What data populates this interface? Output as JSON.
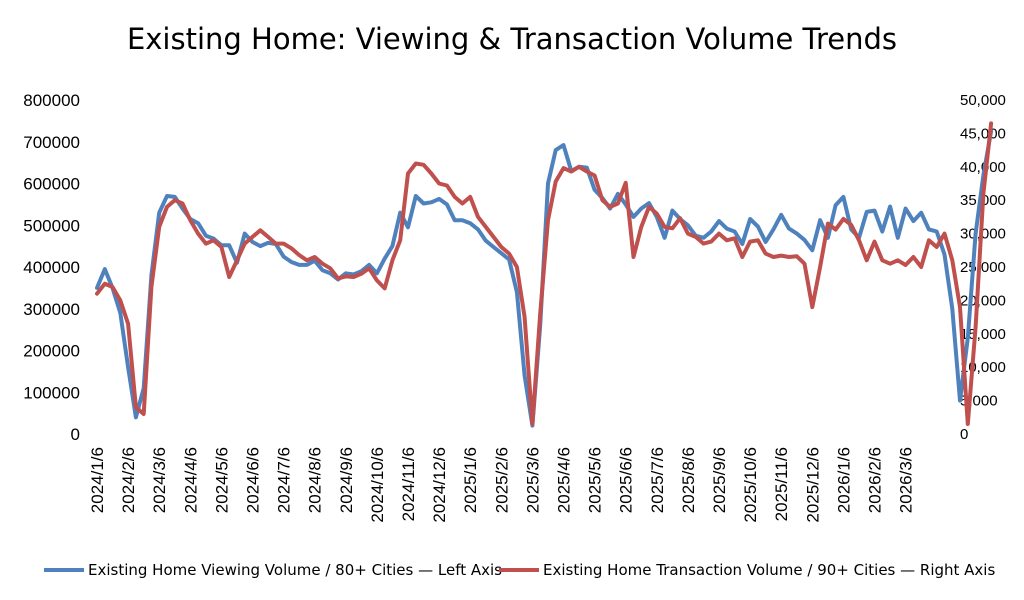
{
  "chart_data": {
    "type": "line",
    "title": "Existing Home: Viewing & Transaction Volume Trends",
    "x_tick_labels": [
      "2024/1/6",
      "2024/2/6",
      "2024/3/6",
      "2024/4/6",
      "2024/5/6",
      "2024/6/6",
      "2024/7/6",
      "2024/8/6",
      "2024/9/6",
      "2024/10/6",
      "2024/11/6",
      "2024/12/6",
      "2025/1/6",
      "2025/2/6",
      "2025/3/6",
      "2025/4/6",
      "2025/5/6",
      "2025/6/6",
      "2025/7/6",
      "2025/8/6",
      "2025/9/6",
      "2025/10/6",
      "2025/11/6",
      "2025/12/6",
      "2026/1/6",
      "2026/2/6",
      "2026/3/6"
    ],
    "y_left": {
      "min": 0,
      "max": 800000,
      "ticks": [
        "0",
        "100000",
        "200000",
        "300000",
        "400000",
        "500000",
        "600000",
        "700000",
        "800000"
      ]
    },
    "y_right": {
      "min": 0,
      "max": 50000,
      "ticks": [
        "0",
        "5,000",
        "10,000",
        "15,000",
        "20,000",
        "25,000",
        "30,000",
        "35,000",
        "40,000",
        "45,000",
        "50,000"
      ]
    },
    "series": [
      {
        "name": "Existing Home Viewing Volume / 80+ Cities — Left Axis",
        "axis": "left",
        "color": "#4f81bd",
        "points": [
          [
            0,
            350000
          ],
          [
            0.25,
            395000
          ],
          [
            0.5,
            350000
          ],
          [
            0.75,
            290000
          ],
          [
            1,
            160000
          ],
          [
            1.25,
            40000
          ],
          [
            1.5,
            110000
          ],
          [
            1.75,
            380000
          ],
          [
            2,
            530000
          ],
          [
            2.25,
            570000
          ],
          [
            2.5,
            568000
          ],
          [
            2.75,
            540000
          ],
          [
            3,
            515000
          ],
          [
            3.25,
            505000
          ],
          [
            3.5,
            475000
          ],
          [
            3.75,
            468000
          ],
          [
            4,
            452000
          ],
          [
            4.25,
            452000
          ],
          [
            4.5,
            410000
          ],
          [
            4.75,
            480000
          ],
          [
            5,
            460000
          ],
          [
            5.25,
            450000
          ],
          [
            5.5,
            458000
          ],
          [
            5.75,
            455000
          ],
          [
            6,
            425000
          ],
          [
            6.25,
            412000
          ],
          [
            6.5,
            405000
          ],
          [
            6.75,
            405000
          ],
          [
            7,
            415000
          ],
          [
            7.25,
            392000
          ],
          [
            7.5,
            385000
          ],
          [
            7.75,
            370000
          ],
          [
            8,
            385000
          ],
          [
            8.25,
            382000
          ],
          [
            8.5,
            390000
          ],
          [
            8.75,
            405000
          ],
          [
            9,
            385000
          ],
          [
            9.25,
            420000
          ],
          [
            9.5,
            450000
          ],
          [
            9.75,
            530000
          ],
          [
            10,
            495000
          ],
          [
            10.25,
            570000
          ],
          [
            10.5,
            552000
          ],
          [
            10.75,
            555000
          ],
          [
            11,
            563000
          ],
          [
            11.25,
            550000
          ],
          [
            11.5,
            512000
          ],
          [
            11.75,
            512000
          ],
          [
            12,
            505000
          ],
          [
            12.25,
            490000
          ],
          [
            12.5,
            463000
          ],
          [
            12.75,
            448000
          ],
          [
            13,
            433000
          ],
          [
            13.25,
            418000
          ],
          [
            13.5,
            340000
          ],
          [
            13.75,
            140000
          ],
          [
            14,
            20000
          ],
          [
            14.25,
            260000
          ],
          [
            14.5,
            600000
          ],
          [
            14.75,
            680000
          ],
          [
            15,
            692000
          ],
          [
            15.25,
            630000
          ],
          [
            15.5,
            640000
          ],
          [
            15.75,
            638000
          ],
          [
            16,
            585000
          ],
          [
            16.25,
            565000
          ],
          [
            16.5,
            540000
          ],
          [
            16.75,
            575000
          ],
          [
            17,
            550000
          ],
          [
            17.25,
            520000
          ],
          [
            17.5,
            540000
          ],
          [
            17.75,
            553000
          ],
          [
            18,
            520000
          ],
          [
            18.25,
            470000
          ],
          [
            18.5,
            535000
          ],
          [
            18.75,
            515000
          ],
          [
            19,
            500000
          ],
          [
            19.25,
            475000
          ],
          [
            19.5,
            470000
          ],
          [
            19.75,
            485000
          ],
          [
            20,
            510000
          ],
          [
            20.25,
            492000
          ],
          [
            20.5,
            485000
          ],
          [
            20.75,
            455000
          ],
          [
            21,
            515000
          ],
          [
            21.25,
            497000
          ],
          [
            21.5,
            460000
          ],
          [
            21.75,
            490000
          ],
          [
            22,
            525000
          ],
          [
            22.25,
            492000
          ],
          [
            22.5,
            480000
          ],
          [
            22.75,
            465000
          ],
          [
            23,
            440000
          ],
          [
            23.25,
            512000
          ],
          [
            23.5,
            470000
          ],
          [
            23.75,
            548000
          ],
          [
            24,
            568000
          ],
          [
            24.25,
            490000
          ],
          [
            24.5,
            470000
          ],
          [
            24.75,
            532000
          ],
          [
            25,
            535000
          ],
          [
            25.25,
            485000
          ],
          [
            25.5,
            545000
          ],
          [
            25.75,
            470000
          ],
          [
            26,
            540000
          ],
          [
            26.25,
            510000
          ],
          [
            26.5,
            530000
          ],
          [
            26.75,
            490000
          ],
          [
            27,
            485000
          ],
          [
            27.25,
            430000
          ],
          [
            27.5,
            300000
          ],
          [
            27.75,
            80000
          ],
          [
            28,
            230000
          ],
          [
            28.25,
            480000
          ],
          [
            28.5,
            620000
          ],
          [
            28.75,
            725000
          ]
        ]
      },
      {
        "name": "Existing Home Transaction Volume / 90+ Cities — Right Axis",
        "axis": "right",
        "color": "#c0504d",
        "points": [
          [
            0,
            21000
          ],
          [
            0.25,
            22500
          ],
          [
            0.5,
            22000
          ],
          [
            0.75,
            20000
          ],
          [
            1,
            16500
          ],
          [
            1.25,
            4000
          ],
          [
            1.5,
            3000
          ],
          [
            1.75,
            22000
          ],
          [
            2,
            31000
          ],
          [
            2.25,
            34000
          ],
          [
            2.5,
            35000
          ],
          [
            2.75,
            34500
          ],
          [
            3,
            32000
          ],
          [
            3.25,
            30000
          ],
          [
            3.5,
            28500
          ],
          [
            3.75,
            29000
          ],
          [
            4,
            28000
          ],
          [
            4.25,
            23500
          ],
          [
            4.5,
            26000
          ],
          [
            4.75,
            28500
          ],
          [
            5,
            29500
          ],
          [
            5.25,
            30500
          ],
          [
            5.5,
            29500
          ],
          [
            5.75,
            28500
          ],
          [
            6,
            28500
          ],
          [
            6.25,
            27800
          ],
          [
            6.5,
            26800
          ],
          [
            6.75,
            26000
          ],
          [
            7,
            26500
          ],
          [
            7.25,
            25500
          ],
          [
            7.5,
            24800
          ],
          [
            7.75,
            23300
          ],
          [
            8,
            23600
          ],
          [
            8.25,
            23500
          ],
          [
            8.5,
            24000
          ],
          [
            8.75,
            24800
          ],
          [
            9,
            23000
          ],
          [
            9.25,
            21800
          ],
          [
            9.5,
            26000
          ],
          [
            9.75,
            29000
          ],
          [
            10,
            39000
          ],
          [
            10.25,
            40500
          ],
          [
            10.5,
            40300
          ],
          [
            10.75,
            39000
          ],
          [
            11,
            37500
          ],
          [
            11.25,
            37200
          ],
          [
            11.5,
            35500
          ],
          [
            11.75,
            34500
          ],
          [
            12,
            35500
          ],
          [
            12.25,
            32500
          ],
          [
            12.75,
            29500
          ],
          [
            13,
            28000
          ],
          [
            13.25,
            27000
          ],
          [
            13.5,
            25000
          ],
          [
            13.75,
            17500
          ],
          [
            14,
            1500
          ],
          [
            14.25,
            18000
          ],
          [
            14.5,
            32000
          ],
          [
            14.75,
            37800
          ],
          [
            15,
            39800
          ],
          [
            15.25,
            39300
          ],
          [
            15.5,
            40000
          ],
          [
            15.75,
            39300
          ],
          [
            16,
            38700
          ],
          [
            16.25,
            35000
          ],
          [
            16.5,
            34000
          ],
          [
            16.75,
            34500
          ],
          [
            17,
            37600
          ],
          [
            17.25,
            26500
          ],
          [
            17.5,
            31000
          ],
          [
            17.75,
            34000
          ],
          [
            18,
            33000
          ],
          [
            18.25,
            31000
          ],
          [
            18.5,
            30800
          ],
          [
            18.75,
            32300
          ],
          [
            19,
            30000
          ],
          [
            19.25,
            29500
          ],
          [
            19.5,
            28500
          ],
          [
            19.75,
            28800
          ],
          [
            20,
            30000
          ],
          [
            20.25,
            29000
          ],
          [
            20.5,
            29300
          ],
          [
            20.75,
            26500
          ],
          [
            21,
            28800
          ],
          [
            21.25,
            29000
          ],
          [
            21.5,
            27000
          ],
          [
            21.75,
            26500
          ],
          [
            22,
            26700
          ],
          [
            22.25,
            26500
          ],
          [
            22.5,
            26600
          ],
          [
            22.75,
            25500
          ],
          [
            23,
            19000
          ],
          [
            23.25,
            25000
          ],
          [
            23.5,
            31500
          ],
          [
            23.75,
            30600
          ],
          [
            24,
            32200
          ],
          [
            24.25,
            31300
          ],
          [
            24.5,
            29000
          ],
          [
            24.75,
            26000
          ],
          [
            25,
            28800
          ],
          [
            25.25,
            26000
          ],
          [
            25.5,
            25500
          ],
          [
            25.75,
            26000
          ],
          [
            26,
            25300
          ],
          [
            26.25,
            26500
          ],
          [
            26.5,
            25000
          ],
          [
            26.75,
            29000
          ],
          [
            27,
            28000
          ],
          [
            27.25,
            30000
          ],
          [
            27.5,
            26000
          ],
          [
            27.75,
            19000
          ],
          [
            28,
            1500
          ],
          [
            28.25,
            16000
          ],
          [
            28.5,
            36000
          ],
          [
            28.75,
            46500
          ]
        ]
      }
    ],
    "legend_position": "bottom"
  }
}
